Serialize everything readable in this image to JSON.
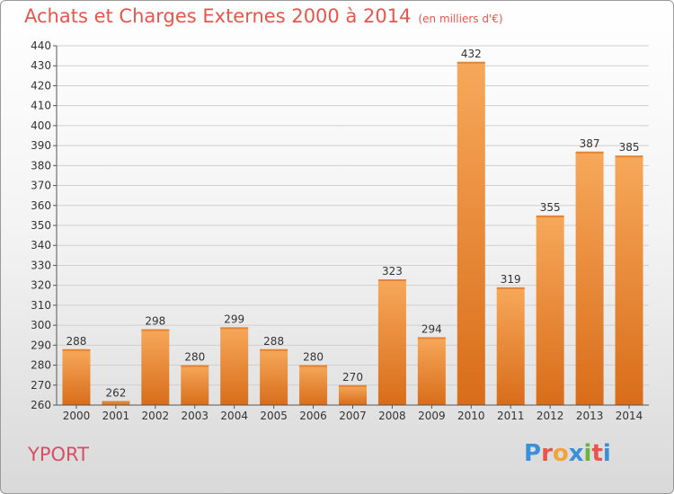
{
  "title": "Achats et Charges Externes 2000 à 2014",
  "unit_note": "(en milliers d'€)",
  "commune": "YPORT",
  "logo": {
    "text": "Proxiti",
    "letters": [
      "P",
      "r",
      "o",
      "x",
      "i",
      "t",
      "i"
    ],
    "letter_colors": [
      "#3a8fd8",
      "#e8554c",
      "#f2a33a",
      "#3a8fd8",
      "#6bb43f",
      "#e8554c",
      "#3a8fd8"
    ]
  },
  "colors": {
    "bar_top": "#f7a85a",
    "bar_bottom": "#d86d1a",
    "grid": "#cfcfcf",
    "axis": "#555555",
    "text": "#333333",
    "title": "#e8554c",
    "commune": "#d54f66"
  },
  "chart_data": {
    "type": "bar",
    "title": "Achats et Charges Externes 2000 à 2014",
    "xlabel": "",
    "ylabel": "",
    "ylim": [
      260,
      440
    ],
    "ytick_step": 10,
    "grid": true,
    "categories": [
      "2000",
      "2001",
      "2002",
      "2003",
      "2004",
      "2005",
      "2006",
      "2007",
      "2008",
      "2009",
      "2010",
      "2011",
      "2012",
      "2013",
      "2014"
    ],
    "values": [
      288,
      262,
      298,
      280,
      299,
      288,
      280,
      270,
      323,
      294,
      432,
      319,
      355,
      387,
      385
    ]
  }
}
